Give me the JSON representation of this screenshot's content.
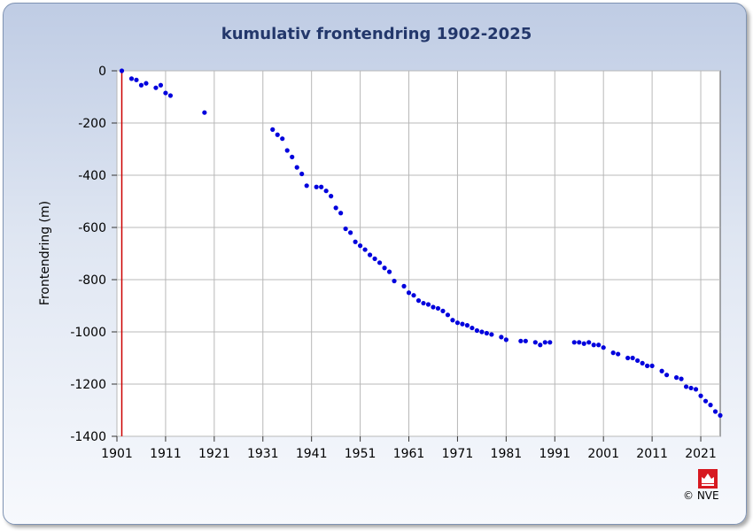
{
  "chart_data": {
    "type": "scatter",
    "title": "kumulativ frontendring 1902-2025",
    "xlabel": "",
    "ylabel": "Frontendring (m)",
    "xlim": [
      1901,
      2025
    ],
    "ylim": [
      -1400,
      0
    ],
    "xticks": [
      1901,
      1911,
      1921,
      1931,
      1941,
      1951,
      1961,
      1971,
      1981,
      1991,
      2001,
      2011,
      2021
    ],
    "yticks": [
      0,
      -200,
      -400,
      -600,
      -800,
      -1000,
      -1200,
      -1400
    ],
    "grid": true,
    "reference_line_x": 1902,
    "point_color": "#0000dd",
    "reference_line_color": "#cc0000",
    "series": [
      {
        "x": [
          1902,
          1904,
          1905,
          1906,
          1907,
          1909,
          1910,
          1911,
          1912,
          1919,
          1933,
          1934,
          1935,
          1936,
          1937,
          1938,
          1939,
          1940,
          1942,
          1943,
          1944,
          1945,
          1946,
          1947,
          1948,
          1949,
          1950,
          1951,
          1952,
          1953,
          1954,
          1955,
          1956,
          1957,
          1958,
          1960,
          1961,
          1962,
          1963,
          1964,
          1965,
          1966,
          1967,
          1968,
          1969,
          1970,
          1971,
          1972,
          1973,
          1974,
          1975,
          1976,
          1977,
          1978,
          1980,
          1981,
          1984,
          1985,
          1987,
          1988,
          1989,
          1990,
          1995,
          1996,
          1997,
          1998,
          1999,
          2000,
          2001,
          2003,
          2004,
          2006,
          2007,
          2008,
          2009,
          2010,
          2011,
          2013,
          2014,
          2016,
          2017,
          2018,
          2019,
          2020,
          2021,
          2022,
          2023,
          2024,
          2025
        ],
        "y": [
          0,
          -30,
          -35,
          -55,
          -48,
          -65,
          -55,
          -85,
          -95,
          -160,
          -225,
          -245,
          -260,
          -305,
          -330,
          -370,
          -395,
          -440,
          -445,
          -445,
          -460,
          -480,
          -525,
          -545,
          -605,
          -620,
          -655,
          -670,
          -685,
          -705,
          -720,
          -735,
          -755,
          -770,
          -805,
          -825,
          -850,
          -860,
          -880,
          -890,
          -895,
          -905,
          -910,
          -920,
          -935,
          -955,
          -965,
          -970,
          -975,
          -985,
          -995,
          -1000,
          -1005,
          -1010,
          -1020,
          -1030,
          -1035,
          -1035,
          -1040,
          -1050,
          -1040,
          -1040,
          -1040,
          -1040,
          -1045,
          -1040,
          -1050,
          -1050,
          -1060,
          -1080,
          -1085,
          -1100,
          -1100,
          -1110,
          -1120,
          -1130,
          -1130,
          -1150,
          -1165,
          -1175,
          -1180,
          -1210,
          -1215,
          -1220,
          -1245,
          -1265,
          -1280,
          -1305,
          -1320
        ]
      }
    ]
  },
  "footer": {
    "copyright": "© NVE"
  },
  "logo_icon": "nve-logo-icon"
}
